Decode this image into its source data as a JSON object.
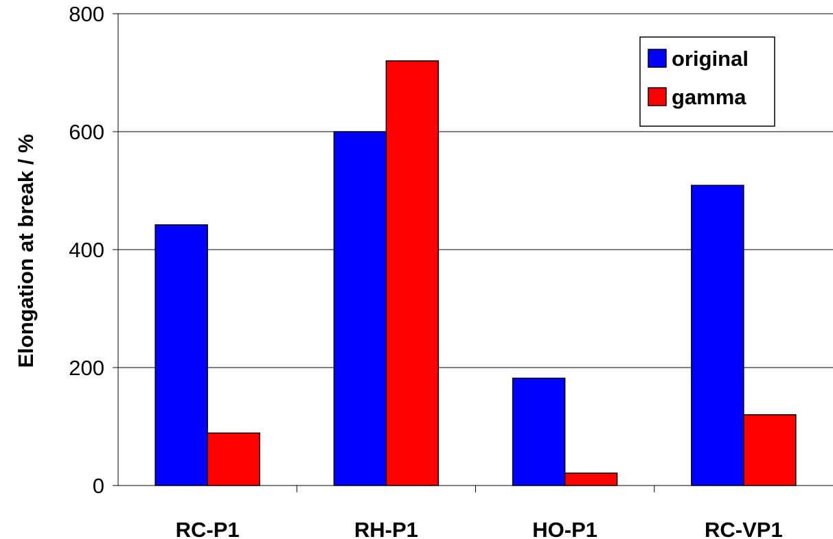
{
  "chart_data": {
    "type": "bar",
    "categories": [
      "RC-P1",
      "RH-P1",
      "HO-P1",
      "RC-VP1"
    ],
    "series": [
      {
        "name": "original",
        "color": "#0000ff",
        "values": [
          442,
          600,
          182,
          509
        ]
      },
      {
        "name": "gamma",
        "color": "#ff0000",
        "values": [
          89,
          720,
          21,
          120
        ]
      }
    ],
    "title": "",
    "xlabel": "",
    "ylabel": "Elongation at break / %",
    "ylim": [
      0,
      800
    ],
    "yticks": [
      0,
      200,
      400,
      600,
      800
    ],
    "grid": true,
    "legend_position": "top-right"
  }
}
